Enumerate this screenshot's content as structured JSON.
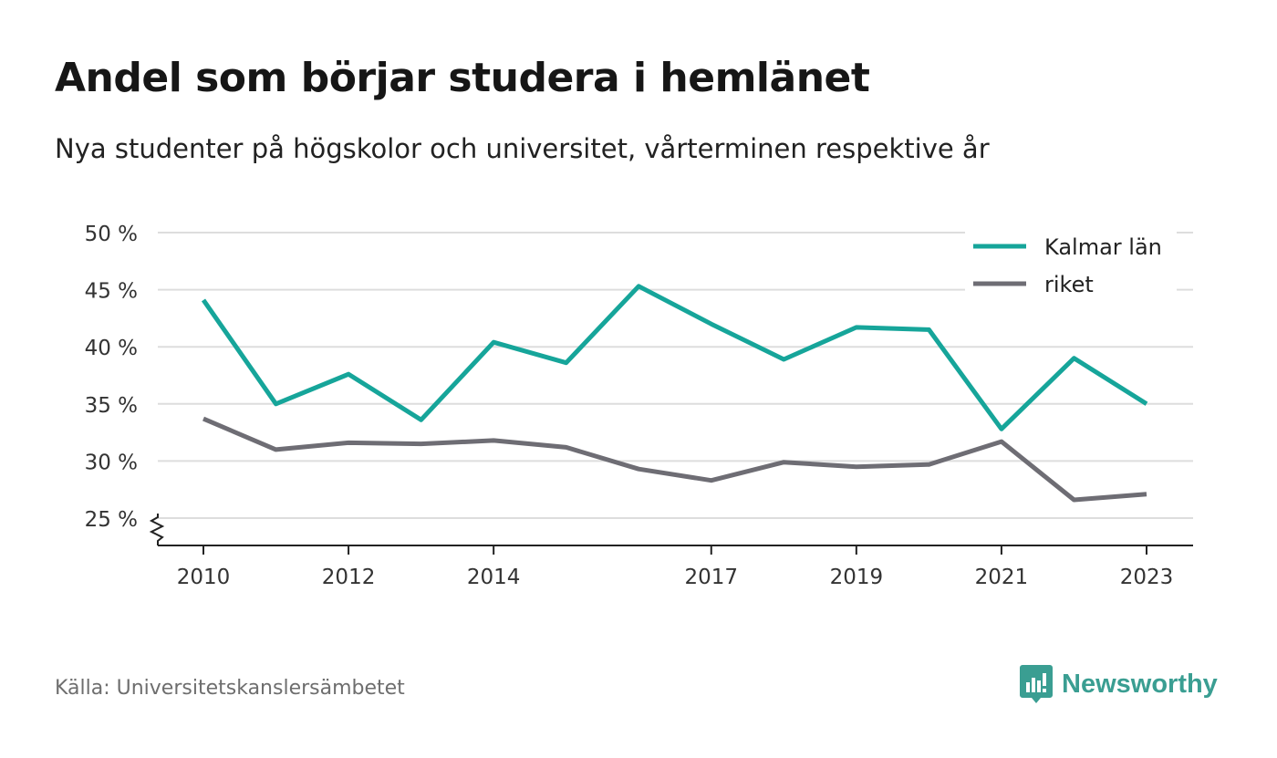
{
  "header": {
    "title": "Andel som börjar studera i hemlänet",
    "subtitle": "Nya studenter på högskolor och universitet, vårterminen respektive år"
  },
  "footer": {
    "source": "Källa: Universitetskanslersämbetet",
    "brand": "Newsworthy",
    "brand_icon": "newsworthy-logo-icon"
  },
  "colors": {
    "kalmar": "#16a59a",
    "riket": "#6e6d74",
    "grid": "#dddddd",
    "axis": "#222222",
    "brand": "#3a9e92"
  },
  "chart_data": {
    "type": "line",
    "x": [
      2010,
      2011,
      2012,
      2013,
      2014,
      2015,
      2016,
      2017,
      2018,
      2019,
      2020,
      2021,
      2022,
      2023
    ],
    "x_tick_values": [
      2010,
      2012,
      2014,
      2017,
      2019,
      2021,
      2023
    ],
    "x_tick_labels": [
      "2010",
      "2012",
      "2014",
      "2017",
      "2019",
      "2021",
      "2023"
    ],
    "y_ticks": [
      25,
      30,
      35,
      40,
      45,
      50
    ],
    "y_tick_labels": [
      "25 %",
      "30 %",
      "35 %",
      "40 %",
      "45 %",
      "50 %"
    ],
    "ylim": [
      22.6,
      50
    ],
    "y_axis_break": true,
    "grid": true,
    "legend_position": "top-right",
    "series": [
      {
        "name": "Kalmar län",
        "color": "#16a59a",
        "values": [
          44.1,
          35.0,
          37.6,
          33.6,
          40.4,
          38.6,
          45.3,
          42.0,
          38.9,
          41.7,
          41.5,
          32.8,
          39.0,
          35.0
        ]
      },
      {
        "name": "riket",
        "color": "#6e6d74",
        "values": [
          33.7,
          31.0,
          31.6,
          31.5,
          31.8,
          31.2,
          29.3,
          28.3,
          29.9,
          29.5,
          29.7,
          31.7,
          26.6,
          27.1
        ]
      }
    ]
  }
}
